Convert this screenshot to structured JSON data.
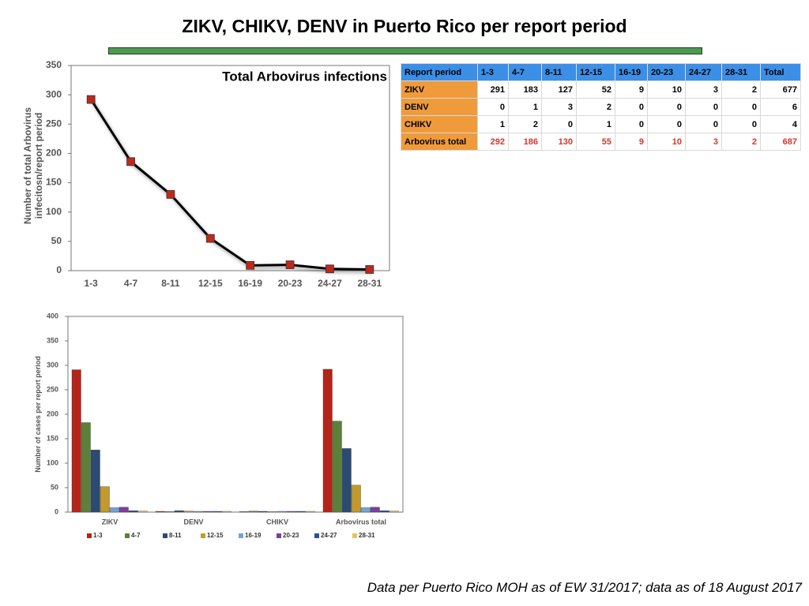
{
  "title": "ZIKV, CHIKV, DENV in Puerto Rico per report period",
  "footnote": "Data per Puerto Rico MOH as of EW 31/2017; data as of 18 August 2017",
  "table": {
    "header": [
      "Report period",
      "1-3",
      "4-7",
      "8-11",
      "12-15",
      "16-19",
      "20-23",
      "24-27",
      "28-31",
      "Total"
    ],
    "rows": [
      [
        "ZIKV",
        291,
        183,
        127,
        52,
        9,
        10,
        3,
        2,
        677
      ],
      [
        "DENV",
        0,
        1,
        3,
        2,
        0,
        0,
        0,
        0,
        6
      ],
      [
        "CHIKV",
        1,
        2,
        0,
        1,
        0,
        0,
        0,
        0,
        4
      ],
      [
        "Arbovirus total",
        292,
        186,
        130,
        55,
        9,
        10,
        3,
        2,
        687
      ]
    ]
  },
  "chart_data": [
    {
      "type": "line",
      "title": "Total Arbovirus infections",
      "ylabel": "Number of total Arbovirus infecitosn/report period",
      "categories": [
        "1-3",
        "4-7",
        "8-11",
        "12-15",
        "16-19",
        "20-23",
        "24-27",
        "28-31"
      ],
      "values": [
        292,
        186,
        130,
        55,
        9,
        10,
        3,
        2
      ],
      "color": "#000000",
      "marker_color": "#c0281c",
      "ylim": [
        0,
        350
      ],
      "yticks": [
        0,
        50,
        100,
        150,
        200,
        250,
        300,
        350
      ]
    },
    {
      "type": "bar",
      "ylabel": "Number of cases per report period",
      "categories": [
        "ZIKV",
        "DENV",
        "CHIKV",
        "Arbovirus total"
      ],
      "series": [
        {
          "name": "1-3",
          "color": "#b5241a",
          "values": [
            291,
            0,
            1,
            292
          ]
        },
        {
          "name": "4-7",
          "color": "#5c8039",
          "values": [
            183,
            1,
            2,
            186
          ]
        },
        {
          "name": "8-11",
          "color": "#2c4b72",
          "values": [
            127,
            3,
            0,
            130
          ]
        },
        {
          "name": "12-15",
          "color": "#c3992b",
          "values": [
            52,
            2,
            1,
            55
          ]
        },
        {
          "name": "16-19",
          "color": "#72a3da",
          "values": [
            9,
            0,
            0,
            9
          ]
        },
        {
          "name": "20-23",
          "color": "#7a3f9d",
          "values": [
            10,
            0,
            0,
            10
          ]
        },
        {
          "name": "24-27",
          "color": "#2f4f8f",
          "values": [
            3,
            0,
            0,
            3
          ]
        },
        {
          "name": "28-31",
          "color": "#e8c35a",
          "values": [
            2,
            0,
            0,
            2
          ]
        }
      ],
      "ylim": [
        0,
        400
      ],
      "yticks": [
        0,
        50,
        100,
        150,
        200,
        250,
        300,
        350,
        400
      ],
      "legend": "bottom"
    }
  ]
}
